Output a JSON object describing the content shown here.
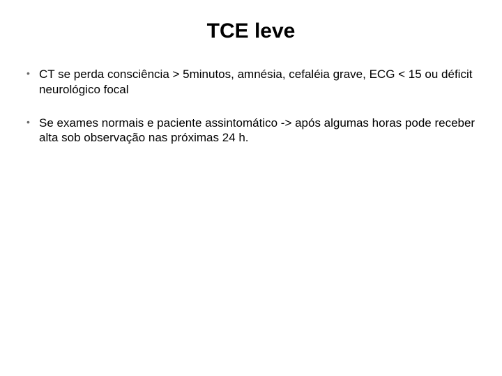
{
  "slide": {
    "title": "TCE leve",
    "title_fontsize": 30,
    "title_color": "#000000",
    "bullet_fontsize": 17,
    "bullet_text_color": "#000000",
    "bullet_marker_color": "#6b6b6b",
    "background_color": "#ffffff",
    "bullets": [
      "CT se perda consciência > 5minutos, amnésia, cefaléia grave, ECG < 15 ou déficit neurológico focal",
      "Se exames normais e paciente assintomático -> após algumas horas pode receber alta sob observação nas próximas 24 h."
    ]
  }
}
